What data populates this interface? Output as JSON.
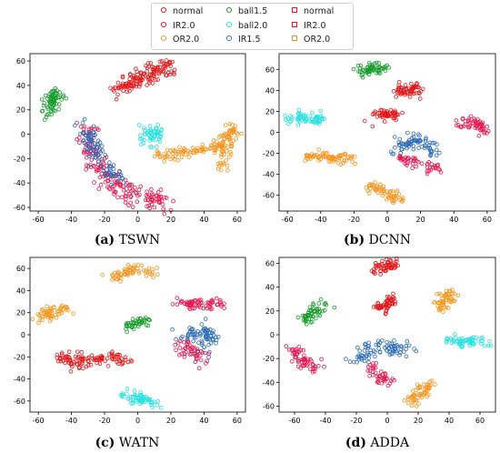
{
  "legend": [
    {
      "label": "normal",
      "color": "#e31a1c",
      "marker": "circle"
    },
    {
      "label": "IR2.0",
      "color": "#e31a1c",
      "marker": "circle"
    },
    {
      "label": "OR2.0",
      "color": "#f7941d",
      "marker": "circle"
    },
    {
      "label": "ball1.5",
      "color": "#1a9c2e",
      "marker": "circle"
    },
    {
      "label": "ball2.0",
      "color": "#26e0e0",
      "marker": "circle"
    },
    {
      "label": "IR1.5",
      "color": "#2f6fb8",
      "marker": "circle"
    },
    {
      "label": "normal",
      "color": "#e31a1c",
      "marker": "square"
    },
    {
      "label": "IR2.0",
      "color": "#e31a1c",
      "marker": "square"
    },
    {
      "label": "OR2.0",
      "color": "#f7941d",
      "marker": "square"
    }
  ],
  "captions": [
    {
      "letter": "(a)",
      "name": "TSWN"
    },
    {
      "letter": "(b)",
      "name": "DCNN"
    },
    {
      "letter": "(c)",
      "name": "WATN"
    },
    {
      "letter": "(d)",
      "name": "ADDA"
    }
  ],
  "chart_data": [
    {
      "type": "scatter",
      "title": "",
      "xlim": [
        -65,
        65
      ],
      "ylim": [
        -63,
        66
      ],
      "xticks": [
        -60,
        -40,
        -20,
        0,
        20,
        40,
        60
      ],
      "yticks": [
        -60,
        -40,
        -20,
        0,
        20,
        40,
        60
      ],
      "clusters": [
        {
          "color": "#e31a1c",
          "path": [
            [
              -15,
              37
            ],
            [
              0,
              45
            ],
            [
              12,
              52
            ],
            [
              20,
              55
            ]
          ],
          "spread": 4,
          "n": 140
        },
        {
          "color": "#1a9c2e",
          "path": [
            [
              -53,
              18
            ],
            [
              -50,
              30
            ],
            [
              -48,
              34
            ]
          ],
          "spread": 2.5,
          "n": 70
        },
        {
          "color": "#26e0e0",
          "path": [
            [
              6,
              -7
            ],
            [
              9,
              5
            ],
            [
              12,
              -3
            ]
          ],
          "spread": 2.5,
          "n": 50
        },
        {
          "color": "#f7941d",
          "path": [
            [
              10,
              -17
            ],
            [
              30,
              -15
            ],
            [
              48,
              -10
            ],
            [
              54,
              0
            ],
            [
              58,
              6
            ]
          ],
          "spread": 2.5,
          "n": 110
        },
        {
          "color": "#f7941d",
          "path": [
            [
              50,
              -30
            ],
            [
              54,
              -10
            ],
            [
              58,
              0
            ]
          ],
          "spread": 2.5,
          "n": 40
        },
        {
          "color": "#e8174f",
          "path": [
            [
              -30,
              5
            ],
            [
              -28,
              -20
            ],
            [
              -15,
              -40
            ],
            [
              0,
              -50
            ],
            [
              15,
              -55
            ]
          ],
          "spread": 4,
          "n": 190
        },
        {
          "color": "#2f6fb8",
          "path": [
            [
              -32,
              8
            ],
            [
              -27,
              -10
            ],
            [
              -20,
              -28
            ],
            [
              -12,
              -38
            ]
          ],
          "spread": 3,
          "n": 90
        }
      ]
    },
    {
      "type": "scatter",
      "title": "",
      "xlim": [
        -65,
        65
      ],
      "ylim": [
        -75,
        75
      ],
      "xticks": [
        -60,
        -40,
        -20,
        0,
        20,
        40,
        60
      ],
      "yticks": [
        -60,
        -40,
        -20,
        0,
        20,
        40,
        60
      ],
      "clusters": [
        {
          "color": "#1a9c2e",
          "path": [
            [
              -18,
              58
            ],
            [
              -10,
              60
            ],
            [
              -3,
              62
            ]
          ],
          "spread": 3,
          "n": 60
        },
        {
          "color": "#e31a1c",
          "path": [
            [
              8,
              38
            ],
            [
              13,
              42
            ],
            [
              20,
              39
            ]
          ],
          "spread": 3,
          "n": 60
        },
        {
          "color": "#e31a1c",
          "path": [
            [
              -7,
              15
            ],
            [
              0,
              18
            ],
            [
              6,
              16
            ]
          ],
          "spread": 2.5,
          "n": 55
        },
        {
          "color": "#e8174f",
          "path": [
            [
              44,
              7
            ],
            [
              52,
              10
            ],
            [
              58,
              2
            ]
          ],
          "spread": 2.5,
          "n": 55
        },
        {
          "color": "#26e0e0",
          "path": [
            [
              -60,
              14
            ],
            [
              -50,
              13
            ],
            [
              -40,
              12
            ]
          ],
          "spread": 2.5,
          "n": 60
        },
        {
          "color": "#f7941d",
          "path": [
            [
              -48,
              -22
            ],
            [
              -35,
              -24
            ],
            [
              -22,
              -25
            ]
          ],
          "spread": 2.5,
          "n": 70
        },
        {
          "color": "#f7941d",
          "path": [
            [
              -10,
              -52
            ],
            [
              0,
              -58
            ],
            [
              8,
              -66
            ]
          ],
          "spread": 2.5,
          "n": 60
        },
        {
          "color": "#2f6fb8",
          "path": [
            [
              5,
              -20
            ],
            [
              15,
              -6
            ],
            [
              25,
              -10
            ],
            [
              28,
              -22
            ]
          ],
          "spread": 3,
          "n": 80
        },
        {
          "color": "#e8174f",
          "path": [
            [
              8,
              -25
            ],
            [
              20,
              -30
            ],
            [
              28,
              -36
            ]
          ],
          "spread": 3,
          "n": 50
        }
      ]
    },
    {
      "type": "scatter",
      "title": "",
      "xlim": [
        -65,
        65
      ],
      "ylim": [
        -70,
        70
      ],
      "xticks": [
        -60,
        -40,
        -20,
        0,
        20,
        40,
        60
      ],
      "yticks": [
        -60,
        -40,
        -20,
        0,
        20,
        40,
        60
      ],
      "clusters": [
        {
          "color": "#f7941d",
          "path": [
            [
              -15,
              50
            ],
            [
              -5,
              58
            ],
            [
              10,
              58
            ]
          ],
          "spread": 2.5,
          "n": 60
        },
        {
          "color": "#f7941d",
          "path": [
            [
              -60,
              17
            ],
            [
              -50,
              20
            ],
            [
              -42,
              24
            ]
          ],
          "spread": 2.5,
          "n": 55
        },
        {
          "color": "#1a9c2e",
          "path": [
            [
              -5,
              8
            ],
            [
              0,
              12
            ],
            [
              4,
              14
            ]
          ],
          "spread": 2.5,
          "n": 45
        },
        {
          "color": "#e8174f",
          "path": [
            [
              26,
              28
            ],
            [
              40,
              28
            ],
            [
              52,
              29
            ]
          ],
          "spread": 2.5,
          "n": 65
        },
        {
          "color": "#e31a1c",
          "path": [
            [
              -48,
              -20
            ],
            [
              -35,
              -25
            ],
            [
              -22,
              -22
            ],
            [
              -8,
              -20
            ]
          ],
          "spread": 3.5,
          "n": 110
        },
        {
          "color": "#2f6fb8",
          "path": [
            [
              28,
              -2
            ],
            [
              35,
              5
            ],
            [
              44,
              0
            ],
            [
              40,
              -15
            ]
          ],
          "spread": 3.5,
          "n": 80
        },
        {
          "color": "#e8174f",
          "path": [
            [
              26,
              -8
            ],
            [
              32,
              -18
            ],
            [
              38,
              -24
            ]
          ],
          "spread": 3,
          "n": 45
        },
        {
          "color": "#26e0e0",
          "path": [
            [
              -6,
              -56
            ],
            [
              2,
              -58
            ],
            [
              10,
              -62
            ]
          ],
          "spread": 2.5,
          "n": 60
        }
      ]
    },
    {
      "type": "scatter",
      "title": "",
      "xlim": [
        -70,
        70
      ],
      "ylim": [
        -65,
        65
      ],
      "xticks": [
        -60,
        -40,
        -20,
        0,
        20,
        40,
        60
      ],
      "yticks": [
        -60,
        -40,
        -20,
        0,
        20,
        40,
        60
      ],
      "clusters": [
        {
          "color": "#e31a1c",
          "path": [
            [
              -8,
              55
            ],
            [
              0,
              58
            ],
            [
              4,
              60
            ]
          ],
          "spread": 2.5,
          "n": 55
        },
        {
          "color": "#e31a1c",
          "path": [
            [
              -5,
              20
            ],
            [
              0,
              26
            ],
            [
              3,
              30
            ]
          ],
          "spread": 2.5,
          "n": 55
        },
        {
          "color": "#1a9c2e",
          "path": [
            [
              -55,
              12
            ],
            [
              -48,
              18
            ],
            [
              -42,
              25
            ]
          ],
          "spread": 2.5,
          "n": 55
        },
        {
          "color": "#f7941d",
          "path": [
            [
              32,
              20
            ],
            [
              38,
              30
            ],
            [
              42,
              38
            ]
          ],
          "spread": 2.5,
          "n": 55
        },
        {
          "color": "#26e0e0",
          "path": [
            [
              40,
              -5
            ],
            [
              50,
              -6
            ],
            [
              65,
              -7
            ]
          ],
          "spread": 2.5,
          "n": 60
        },
        {
          "color": "#e8174f",
          "path": [
            [
              -60,
              -12
            ],
            [
              -55,
              -22
            ],
            [
              -45,
              -28
            ]
          ],
          "spread": 2.5,
          "n": 60
        },
        {
          "color": "#2f6fb8",
          "path": [
            [
              -20,
              -22
            ],
            [
              -10,
              -10
            ],
            [
              5,
              -10
            ],
            [
              15,
              -15
            ]
          ],
          "spread": 3.5,
          "n": 85
        },
        {
          "color": "#e8174f",
          "path": [
            [
              -10,
              -25
            ],
            [
              -5,
              -35
            ],
            [
              0,
              -40
            ]
          ],
          "spread": 2.5,
          "n": 40
        },
        {
          "color": "#f7941d",
          "path": [
            [
              15,
              -57
            ],
            [
              22,
              -48
            ],
            [
              28,
              -40
            ]
          ],
          "spread": 2.5,
          "n": 55
        }
      ]
    }
  ]
}
